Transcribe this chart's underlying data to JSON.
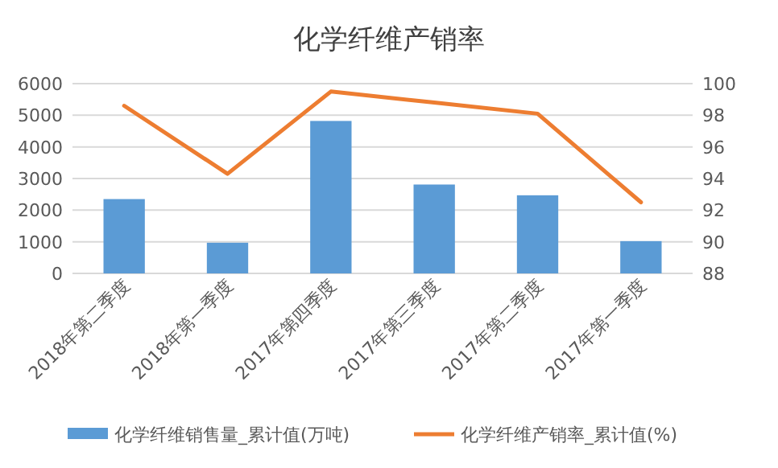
{
  "chart_data": {
    "type": "bar",
    "title": "化学纤维产销率",
    "categories": [
      "2018年第二季度",
      "2018年第一季度",
      "2017年第四季度",
      "2017年第三季度",
      "2017年第二季度",
      "2017年第一季度"
    ],
    "series": [
      {
        "name": "化学纤维销售量_累计值(万吨)",
        "color": "#5b9bd5",
        "values": [
          2350,
          970,
          4820,
          2810,
          2470,
          1020
        ]
      },
      {
        "name": "化学纤维产销率_累计值(%)",
        "type": "line",
        "axis": "y2",
        "color": "#ed7d31",
        "values": [
          98.6,
          94.3,
          99.5,
          98.8,
          98.1,
          92.5
        ]
      }
    ],
    "ylim": [
      0,
      6000
    ],
    "yticks": [
      0,
      1000,
      2000,
      3000,
      4000,
      5000,
      6000
    ],
    "y2lim": [
      88,
      100
    ],
    "y2ticks": [
      88,
      90,
      92,
      94,
      96,
      98,
      100
    ],
    "grid": "y",
    "legend": "bottom",
    "marker": "none",
    "line_style": "solid"
  }
}
